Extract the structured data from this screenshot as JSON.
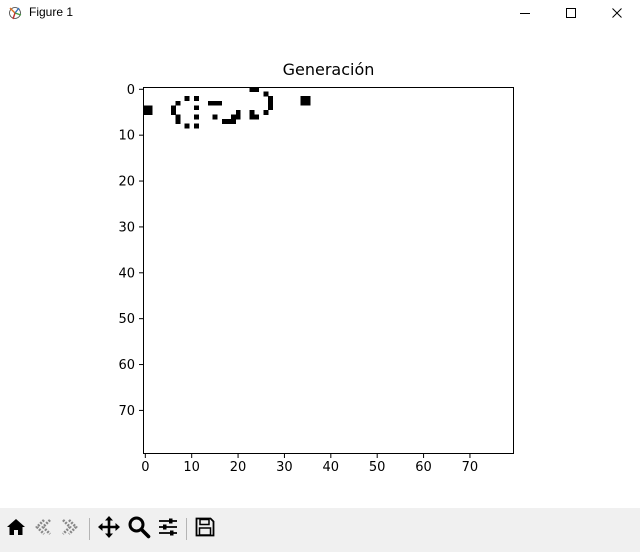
{
  "window": {
    "title": "Figure 1",
    "icon": "matplotlib-icon"
  },
  "window_controls": [
    "minimize-icon",
    "maximize-icon",
    "close-icon"
  ],
  "toolbar": {
    "tools": [
      "home-icon",
      "back-icon",
      "forward-icon",
      "pan-icon",
      "zoom-icon",
      "subplots-icon",
      "save-icon"
    ]
  },
  "chart_data": {
    "type": "heatmap",
    "title": "Generación",
    "xlabel": "",
    "ylabel": "",
    "grid": false,
    "origin": "upper",
    "colormap": {
      "0": "#ffffff",
      "1": "#000000"
    },
    "xlim": [
      -0.5,
      79.5
    ],
    "ylim": [
      79.5,
      -0.5
    ],
    "xticks": [
      0,
      10,
      20,
      30,
      40,
      50,
      60,
      70
    ],
    "yticks": [
      0,
      10,
      20,
      30,
      40,
      50,
      60,
      70
    ],
    "live_cells": [
      [
        0,
        4
      ],
      [
        0,
        5
      ],
      [
        1,
        4
      ],
      [
        1,
        5
      ],
      [
        6,
        4
      ],
      [
        6,
        5
      ],
      [
        7,
        3
      ],
      [
        7,
        6
      ],
      [
        7,
        7
      ],
      [
        9,
        2
      ],
      [
        9,
        8
      ],
      [
        11,
        2
      ],
      [
        11,
        4
      ],
      [
        11,
        6
      ],
      [
        11,
        8
      ],
      [
        14,
        3
      ],
      [
        15,
        3
      ],
      [
        16,
        3
      ],
      [
        15,
        6
      ],
      [
        17,
        7
      ],
      [
        18,
        7
      ],
      [
        19,
        6
      ],
      [
        19,
        7
      ],
      [
        20,
        5
      ],
      [
        20,
        6
      ],
      [
        23,
        0
      ],
      [
        23,
        5
      ],
      [
        23,
        6
      ],
      [
        24,
        0
      ],
      [
        24,
        6
      ],
      [
        26,
        1
      ],
      [
        26,
        5
      ],
      [
        27,
        2
      ],
      [
        27,
        3
      ],
      [
        27,
        4
      ],
      [
        34,
        2
      ],
      [
        34,
        3
      ],
      [
        35,
        2
      ],
      [
        35,
        3
      ]
    ]
  }
}
